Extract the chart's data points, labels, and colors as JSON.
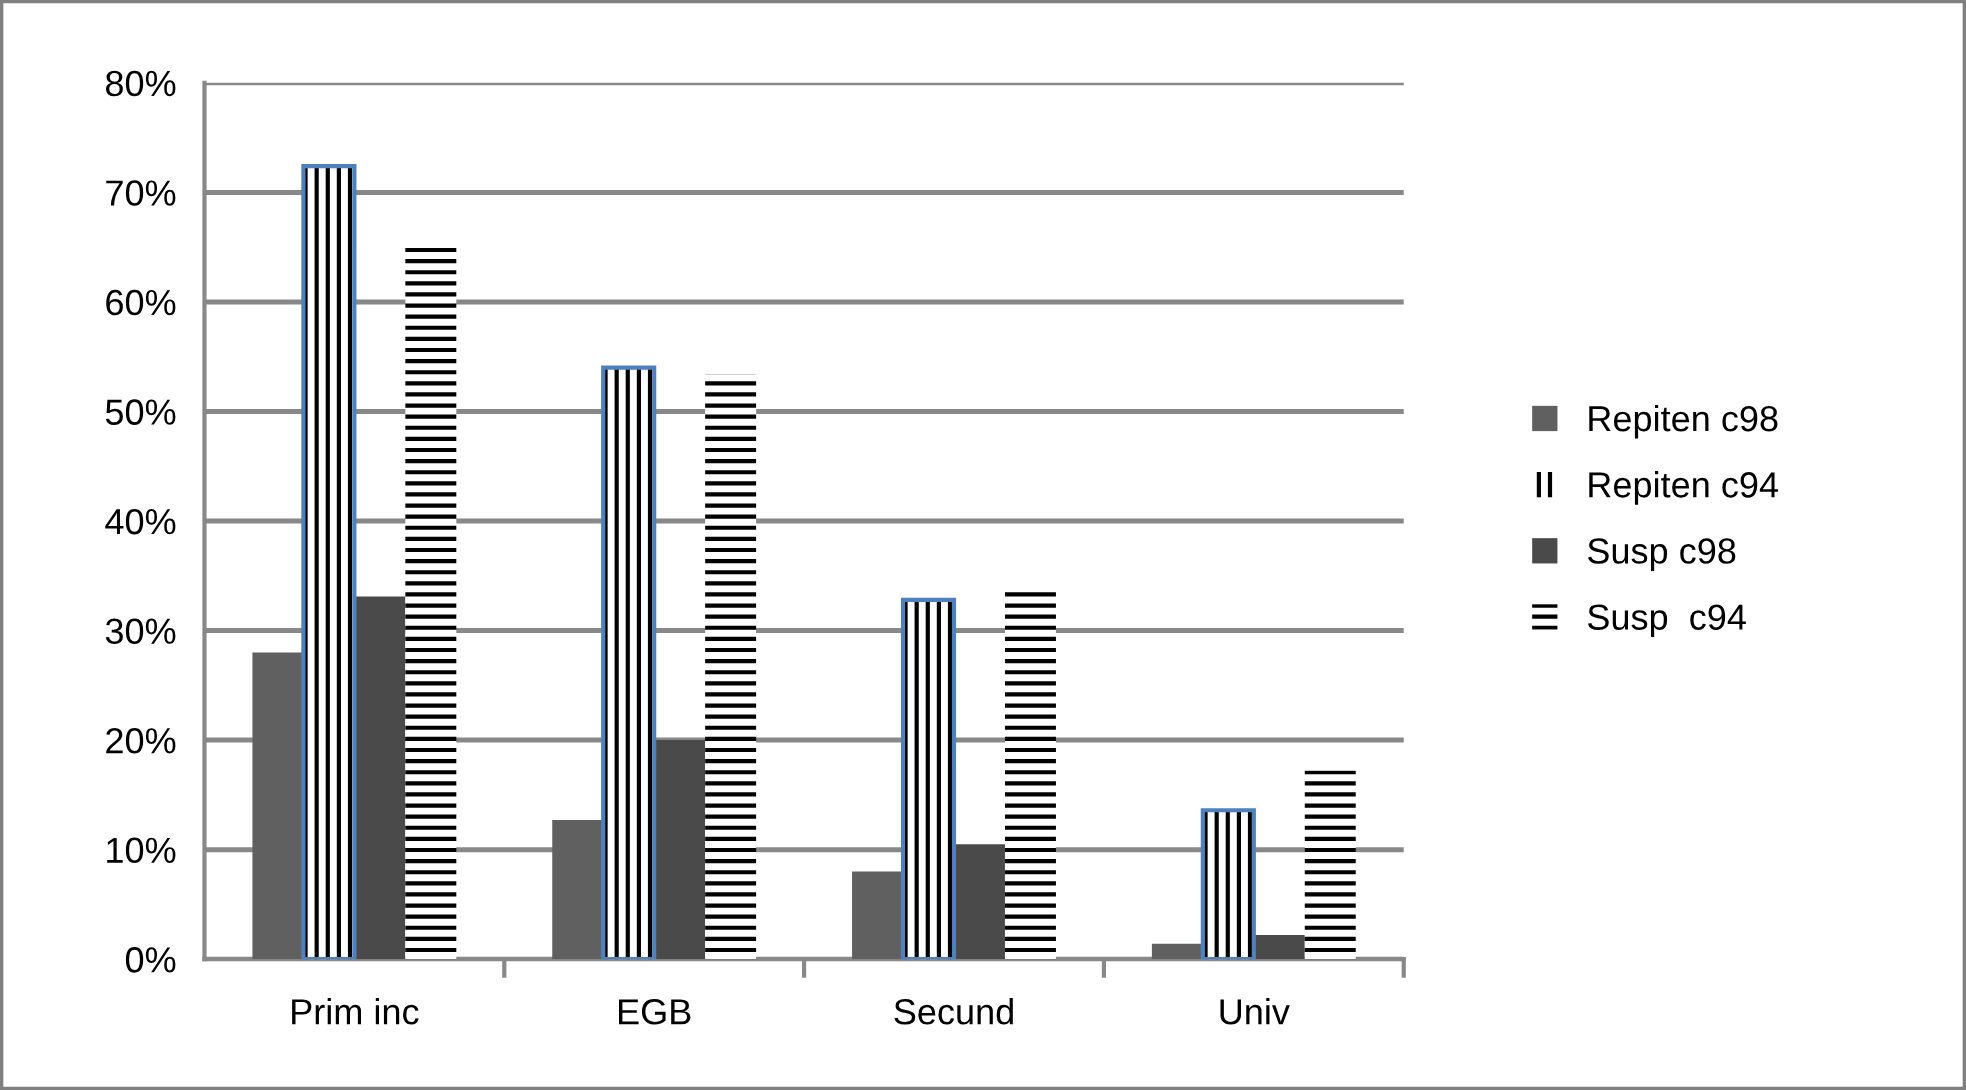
{
  "chart_data": {
    "type": "bar",
    "categories": [
      "Prim inc",
      "EGB",
      "Secund",
      "Univ"
    ],
    "series": [
      {
        "name": "Repiten c98",
        "color": "#606060",
        "values": [
          28,
          12.7,
          8,
          1.4
        ]
      },
      {
        "name": "Repiten c94",
        "color": "#000000",
        "values": [
          72.4,
          54,
          32.8,
          13.6
        ]
      },
      {
        "name": "Susp c98",
        "color": "#4a4a4a",
        "values": [
          33.1,
          20,
          10.5,
          2.2
        ]
      },
      {
        "name": "Susp  c94",
        "color": "#000000",
        "values": [
          65.4,
          53.4,
          34,
          17.2
        ]
      }
    ],
    "ylim": [
      0,
      80
    ],
    "yticks": [
      {
        "value": 0,
        "label": "0%"
      },
      {
        "value": 10,
        "label": "10%"
      },
      {
        "value": 20,
        "label": "20%"
      },
      {
        "value": 30,
        "label": "30%"
      },
      {
        "value": 40,
        "label": "40%"
      },
      {
        "value": 50,
        "label": "50%"
      },
      {
        "value": 60,
        "label": "60%"
      },
      {
        "value": 70,
        "label": "70%"
      },
      {
        "value": 80,
        "label": "80%"
      }
    ],
    "grid": "y",
    "legend": "right"
  }
}
